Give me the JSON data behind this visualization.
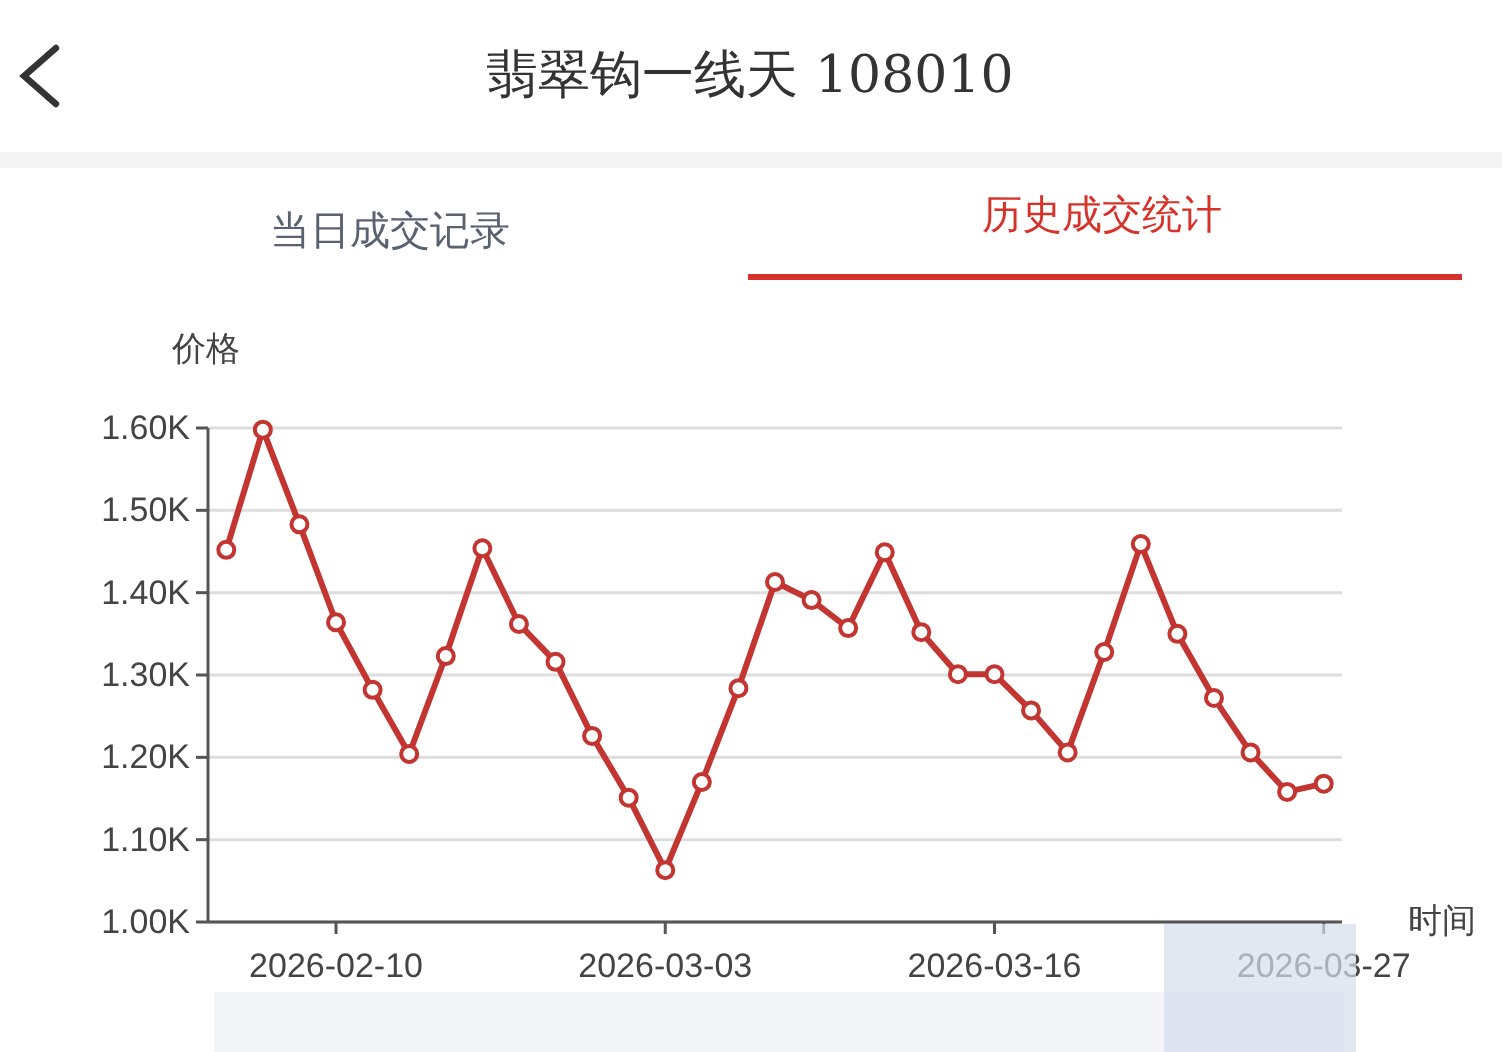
{
  "chart_data": {
    "type": "line",
    "title": "翡翠钩一线天 108010",
    "annotations": [
      "当日成交记录",
      "历史成交统计"
    ],
    "ylabel": "价格",
    "xlabel": "时间",
    "categories": [
      null,
      null,
      null,
      "2026-02-10",
      null,
      null,
      null,
      null,
      null,
      null,
      null,
      null,
      "2026-03-03",
      null,
      null,
      null,
      null,
      null,
      null,
      null,
      null,
      "2026-03-16",
      null,
      null,
      null,
      null,
      null,
      null,
      null,
      null,
      "2026-03-27"
    ],
    "series": [
      {
        "color": "#c23531",
        "values": [
          1452,
          1598,
          1483,
          1364,
          1282,
          1204,
          1323,
          1454,
          1362,
          1316,
          1226,
          1151,
          1063,
          1170,
          1284,
          1413,
          1391,
          1357,
          1449,
          1352,
          1301,
          1301,
          1257,
          1206,
          1328,
          1459,
          1350,
          1272,
          1206,
          1158,
          1168
        ]
      }
    ],
    "ylim": [
      1000,
      1600
    ],
    "yticks": [
      {
        "value": 1000,
        "label": "1.00K"
      },
      {
        "value": 1100,
        "label": "1.10K"
      },
      {
        "value": 1200,
        "label": "1.20K"
      },
      {
        "value": 1300,
        "label": "1.30K"
      },
      {
        "value": 1400,
        "label": "1.40K"
      },
      {
        "value": 1500,
        "label": "1.50K"
      },
      {
        "value": 1600,
        "label": "1.60K"
      }
    ],
    "grid": "y",
    "marker": "circle",
    "line_style": "solid"
  }
}
